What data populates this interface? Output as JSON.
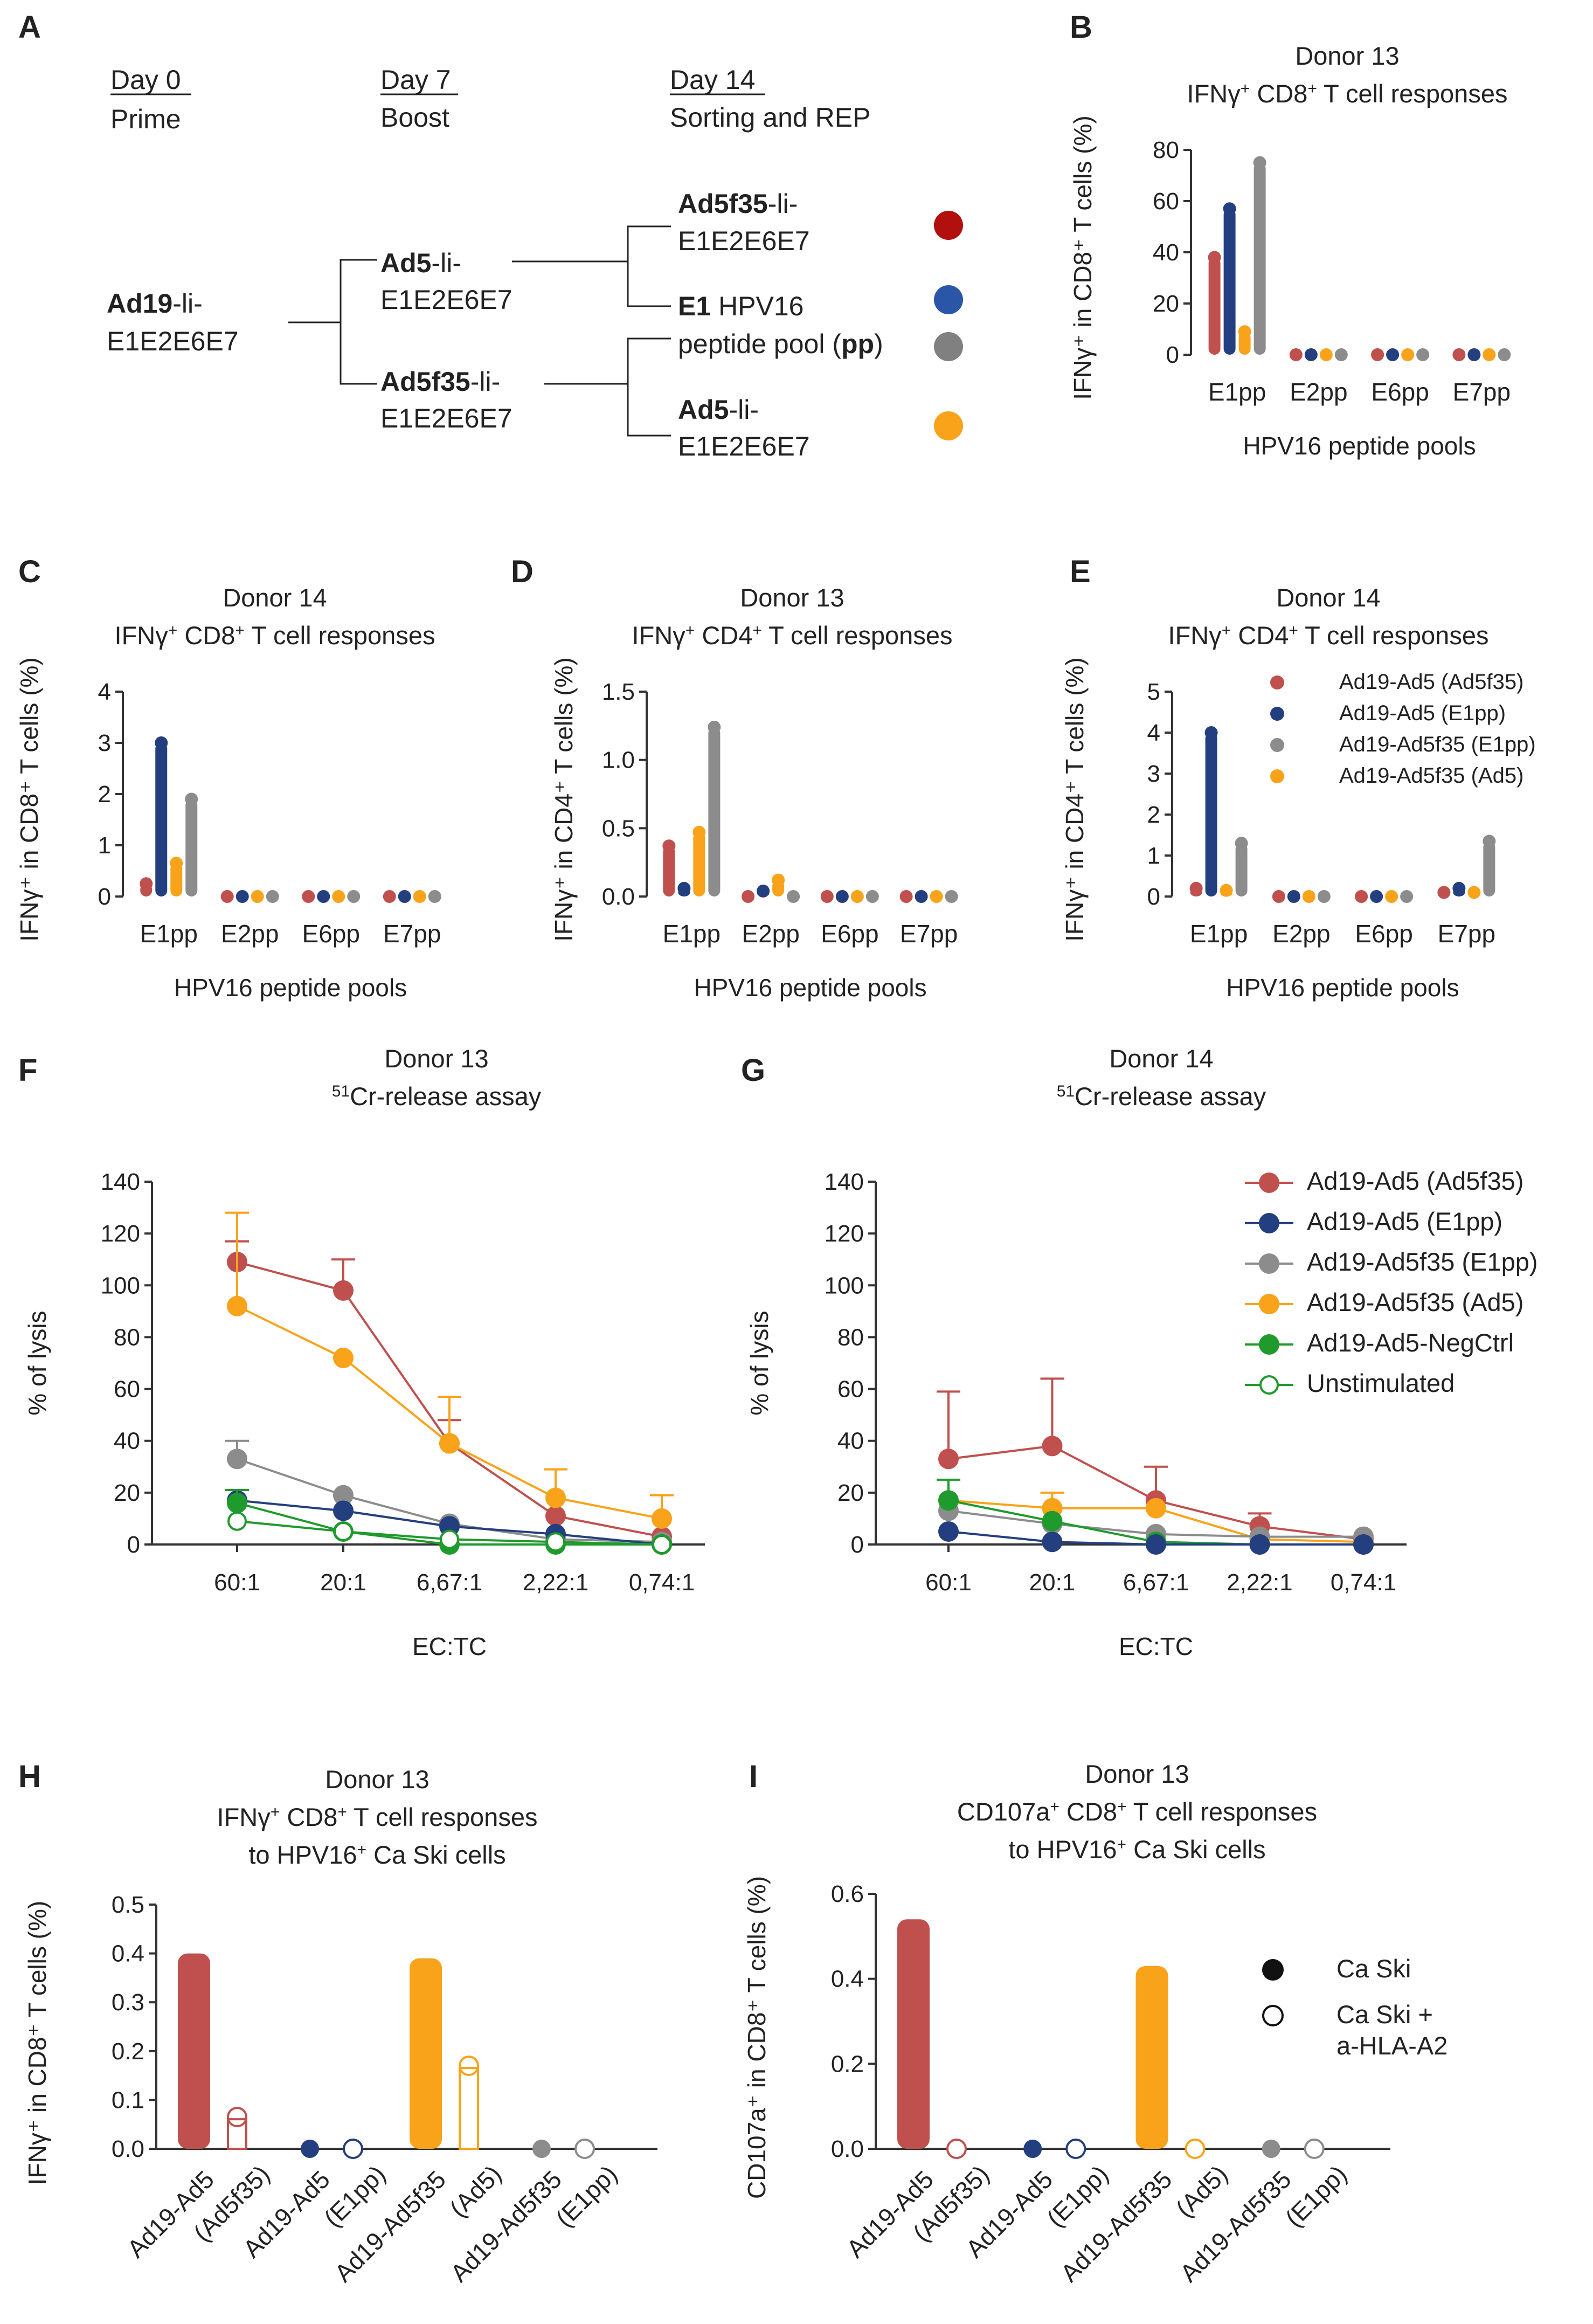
{
  "colors": {
    "red": "#c0504d",
    "navy": "#243f7f",
    "gray": "#8c8c8c",
    "orange": "#f9a31b",
    "green": "#1f9a2c",
    "axis": "#333333",
    "dot_red": "#b20f0f",
    "dot_blue": "#2b56a8",
    "dot_gray": "#808080",
    "dot_orange": "#f9a31b"
  },
  "panel_letters": {
    "a": "A",
    "b": "B",
    "c": "C",
    "d": "D",
    "e": "E",
    "f": "F",
    "g": "G",
    "h": "H",
    "i": "I"
  },
  "schematic": {
    "day0": "Day 0",
    "prime": "Prime",
    "day7": "Day 7",
    "boost": "Boost",
    "day14": "Day 14",
    "sorting": "Sorting and REP",
    "ad19_bold": "Ad19",
    "ad19_rest": "-li-",
    "ad19_line2": "E1E2E6E7",
    "ad5_bold": "Ad5",
    "ad5_rest": "-li-",
    "ad5_line2": "E1E2E6E7",
    "ad5f35_bold": "Ad5f35",
    "ad5f35_rest": "-li-",
    "ad5f35_line2": "E1E2E6E7",
    "out1_bold": "Ad5f35",
    "out1_rest": "-li-",
    "out1_line2": "E1E2E6E7",
    "out2_bold": "E1",
    "out2_rest": " HPV16",
    "out2_line2a": "peptide pool (",
    "out2_line2b": "pp",
    "out2_line2c": ")",
    "out3_bold": "Ad5",
    "out3_rest": "-li-",
    "out3_line2": "E1E2E6E7"
  },
  "legend_small": [
    {
      "label": "Ad19-Ad5 (Ad5f35)",
      "color": "red"
    },
    {
      "label": "Ad19-Ad5 (E1pp)",
      "color": "navy"
    },
    {
      "label": "Ad19-Ad5f35 (E1pp)",
      "color": "gray"
    },
    {
      "label": "Ad19-Ad5f35 (Ad5)",
      "color": "orange"
    }
  ],
  "legend_lysis": [
    {
      "label": "Ad19-Ad5 (Ad5f35)",
      "color": "red",
      "open": false
    },
    {
      "label": "Ad19-Ad5 (E1pp)",
      "color": "navy",
      "open": false
    },
    {
      "label": "Ad19-Ad5f35 (E1pp)",
      "color": "gray",
      "open": false
    },
    {
      "label": "Ad19-Ad5f35 (Ad5)",
      "color": "orange",
      "open": false
    },
    {
      "label": "Ad19-Ad5-NegCtrl",
      "color": "green",
      "open": false
    },
    {
      "label": "Unstimulated",
      "color": "green",
      "open": true
    }
  ],
  "legend_cas": [
    {
      "label": "Ca Ski",
      "open": false
    },
    {
      "label": "Ca Ski +",
      "label2": "a-HLA-A2",
      "open": true
    }
  ],
  "chart_data": [
    {
      "id": "B",
      "type": "bar",
      "title": "Donor 13",
      "subtitle_pre": "IFNγ",
      "subtitle_sup": "+",
      "subtitle_mid": " CD8",
      "subtitle_sup2": "+",
      "subtitle_post": " T cell responses",
      "ylabel": "IFNγ⁺ in CD8⁺ T cells (%)",
      "xlabel": "HPV16 peptide pools",
      "ylim": [
        0,
        80
      ],
      "yticks": [
        0,
        20,
        40,
        60,
        80
      ],
      "ytick_labels": [
        "0",
        "20",
        "40",
        "60",
        "80"
      ],
      "categories": [
        "E1pp",
        "E2pp",
        "E6pp",
        "E7pp"
      ],
      "series": [
        {
          "name": "Ad19-Ad5 (Ad5f35)",
          "color": "red",
          "values": [
            38,
            0,
            0,
            0
          ]
        },
        {
          "name": "Ad19-Ad5 (E1pp)",
          "color": "navy",
          "values": [
            57,
            0,
            0,
            0
          ]
        },
        {
          "name": "Ad19-Ad5f35 (Ad5)",
          "color": "orange",
          "values": [
            9,
            0,
            0,
            0
          ]
        },
        {
          "name": "Ad19-Ad5f35 (E1pp)",
          "color": "gray",
          "values": [
            75,
            0,
            0,
            0
          ]
        }
      ]
    },
    {
      "id": "C",
      "type": "bar",
      "title": "Donor 14",
      "subtitle_pre": "IFNγ",
      "subtitle_sup": "+",
      "subtitle_mid": " CD8",
      "subtitle_sup2": "+",
      "subtitle_post": " T cell responses",
      "ylabel": "IFNγ⁺ in CD8⁺ T cells (%)",
      "xlabel": "HPV16 peptide pools",
      "ylim": [
        0,
        4
      ],
      "yticks": [
        0,
        1,
        2,
        3,
        4
      ],
      "ytick_labels": [
        "0",
        "1",
        "2",
        "3",
        "4"
      ],
      "categories": [
        "E1pp",
        "E2pp",
        "E6pp",
        "E7pp"
      ],
      "series": [
        {
          "name": "Ad19-Ad5 (Ad5f35)",
          "color": "red",
          "values": [
            0.25,
            0,
            0,
            0
          ]
        },
        {
          "name": "Ad19-Ad5 (E1pp)",
          "color": "navy",
          "values": [
            3.0,
            0,
            0,
            0
          ]
        },
        {
          "name": "Ad19-Ad5f35 (Ad5)",
          "color": "orange",
          "values": [
            0.65,
            0,
            0,
            0
          ]
        },
        {
          "name": "Ad19-Ad5f35 (E1pp)",
          "color": "gray",
          "values": [
            1.9,
            0,
            0,
            0
          ]
        }
      ]
    },
    {
      "id": "D",
      "type": "bar",
      "title": "Donor 13",
      "subtitle_pre": "IFNγ",
      "subtitle_sup": "+",
      "subtitle_mid": " CD4",
      "subtitle_sup2": "+",
      "subtitle_post": " T cell responses",
      "ylabel": "IFNγ⁺ in CD4⁺ T cells (%)",
      "xlabel": "HPV16 peptide pools",
      "ylim": [
        0,
        1.5
      ],
      "yticks": [
        0,
        0.5,
        1.0,
        1.5
      ],
      "ytick_labels": [
        "0.0",
        "0.5",
        "1.0",
        "1.5"
      ],
      "categories": [
        "E1pp",
        "E2pp",
        "E6pp",
        "E7pp"
      ],
      "series": [
        {
          "name": "Ad19-Ad5 (Ad5f35)",
          "color": "red",
          "values": [
            0.37,
            0,
            0,
            0
          ]
        },
        {
          "name": "Ad19-Ad5 (E1pp)",
          "color": "navy",
          "values": [
            0.06,
            0.04,
            0,
            0
          ]
        },
        {
          "name": "Ad19-Ad5f35 (Ad5)",
          "color": "orange",
          "values": [
            0.47,
            0.12,
            0,
            0
          ]
        },
        {
          "name": "Ad19-Ad5f35 (E1pp)",
          "color": "gray",
          "values": [
            1.24,
            0,
            0,
            0
          ]
        }
      ]
    },
    {
      "id": "E",
      "type": "bar",
      "title": "Donor 14",
      "subtitle_pre": "IFNγ",
      "subtitle_sup": "+",
      "subtitle_mid": " CD4",
      "subtitle_sup2": "+",
      "subtitle_post": " T cell responses",
      "ylabel": "IFNγ⁺ in CD4⁺ T cells (%)",
      "xlabel": "HPV16 peptide pools",
      "ylim": [
        0,
        5
      ],
      "yticks": [
        0,
        1,
        2,
        3,
        4,
        5
      ],
      "ytick_labels": [
        "0",
        "1",
        "2",
        "3",
        "4",
        "5"
      ],
      "categories": [
        "E1pp",
        "E2pp",
        "E6pp",
        "E7pp"
      ],
      "series": [
        {
          "name": "Ad19-Ad5 (Ad5f35)",
          "color": "red",
          "values": [
            0.2,
            0,
            0,
            0.1
          ]
        },
        {
          "name": "Ad19-Ad5 (E1pp)",
          "color": "navy",
          "values": [
            4.0,
            0,
            0,
            0.2
          ]
        },
        {
          "name": "Ad19-Ad5f35 (Ad5)",
          "color": "orange",
          "values": [
            0.15,
            0,
            0,
            0.1
          ]
        },
        {
          "name": "Ad19-Ad5f35 (E1pp)",
          "color": "gray",
          "values": [
            1.3,
            0,
            0,
            1.35
          ]
        }
      ]
    },
    {
      "id": "F",
      "type": "line",
      "title": "Donor 13",
      "subtitle_sup": "51",
      "subtitle_post": "Cr-release assay",
      "ylabel": "% of lysis",
      "xlabel": "EC:TC",
      "ylim": [
        0,
        140
      ],
      "yticks": [
        0,
        20,
        40,
        60,
        80,
        100,
        120,
        140
      ],
      "ytick_labels": [
        "0",
        "20",
        "40",
        "60",
        "80",
        "100",
        "120",
        "140"
      ],
      "categories": [
        "60:1",
        "20:1",
        "6,67:1",
        "2,22:1",
        "0,74:1"
      ],
      "series": [
        {
          "name": "Ad19-Ad5 (Ad5f35)",
          "color": "red",
          "values": [
            109,
            98,
            39,
            11,
            3
          ],
          "err": [
            8,
            12,
            9,
            0,
            0
          ]
        },
        {
          "name": "Ad19-Ad5f35 (Ad5)",
          "color": "orange",
          "values": [
            92,
            72,
            39,
            18,
            10
          ],
          "err": [
            36,
            0,
            18,
            11,
            9
          ]
        },
        {
          "name": "Ad19-Ad5f35 (E1pp)",
          "color": "gray",
          "values": [
            33,
            19,
            8,
            2,
            1
          ],
          "err": [
            7,
            0,
            0,
            0,
            0
          ]
        },
        {
          "name": "Ad19-Ad5 (E1pp)",
          "color": "navy",
          "values": [
            17,
            13,
            7,
            4,
            0
          ],
          "err": [
            4,
            0,
            0,
            0,
            0
          ]
        },
        {
          "name": "Ad19-Ad5-NegCtrl",
          "color": "green",
          "values": [
            16,
            5,
            0,
            0,
            0
          ],
          "err": [
            5,
            0,
            0,
            0,
            0
          ]
        },
        {
          "name": "Unstimulated",
          "color": "green",
          "open": true,
          "values": [
            9,
            5,
            2,
            1,
            0
          ],
          "err": [
            0,
            0,
            0,
            0,
            0
          ]
        }
      ]
    },
    {
      "id": "G",
      "type": "line",
      "title": "Donor 14",
      "subtitle_sup": "51",
      "subtitle_post": "Cr-release assay",
      "ylabel": "% of lysis",
      "xlabel": "EC:TC",
      "ylim": [
        0,
        140
      ],
      "yticks": [
        0,
        20,
        40,
        60,
        80,
        100,
        120,
        140
      ],
      "ytick_labels": [
        "0",
        "20",
        "40",
        "60",
        "80",
        "100",
        "120",
        "140"
      ],
      "categories": [
        "60:1",
        "20:1",
        "6,67:1",
        "2,22:1",
        "0,74:1"
      ],
      "series": [
        {
          "name": "Ad19-Ad5 (Ad5f35)",
          "color": "red",
          "values": [
            33,
            38,
            17,
            7,
            2
          ],
          "err": [
            26,
            26,
            13,
            5,
            0
          ]
        },
        {
          "name": "Ad19-Ad5f35 (Ad5)",
          "color": "orange",
          "values": [
            17,
            14,
            14,
            2,
            1
          ],
          "err": [
            0,
            6,
            0,
            0,
            0
          ]
        },
        {
          "name": "Ad19-Ad5f35 (E1pp)",
          "color": "gray",
          "values": [
            13,
            8,
            4,
            3,
            3
          ],
          "err": [
            0,
            0,
            0,
            0,
            0
          ]
        },
        {
          "name": "Ad19-Ad5-NegCtrl",
          "color": "green",
          "values": [
            17,
            9,
            1,
            0,
            0
          ],
          "err": [
            8,
            0,
            0,
            0,
            0
          ]
        },
        {
          "name": "Ad19-Ad5 (E1pp)",
          "color": "navy",
          "values": [
            5,
            1,
            0,
            0,
            0
          ],
          "err": [
            0,
            0,
            0,
            0,
            0
          ]
        }
      ]
    },
    {
      "id": "H",
      "type": "bar",
      "title": "Donor 13",
      "subtitle_pre": "IFNγ",
      "subtitle_sup": "+",
      "subtitle_mid": " CD8",
      "subtitle_sup2": "+",
      "subtitle_post": " T cell responses",
      "subtitle2_pre": "to HPV16",
      "subtitle2_sup": "+",
      "subtitle2_post": "  Ca Ski cells",
      "ylabel": "IFNγ⁺ in CD8⁺ T cells (%)",
      "xlabel": "",
      "ylim": [
        0,
        0.5
      ],
      "yticks": [
        0,
        0.1,
        0.2,
        0.3,
        0.4,
        0.5
      ],
      "ytick_labels": [
        "0.0",
        "0.1",
        "0.2",
        "0.3",
        "0.4",
        "0.5"
      ],
      "categories": [
        [
          "Ad19-Ad5",
          "(Ad5f35)"
        ],
        [
          "Ad19-Ad5",
          "(E1pp)"
        ],
        [
          "Ad19-Ad5f35",
          "(Ad5)"
        ],
        [
          "Ad19-Ad5f35",
          "(E1pp)"
        ]
      ],
      "groups": [
        {
          "color": "red",
          "caski": 0.4,
          "blocked": 0.065
        },
        {
          "color": "navy",
          "caski": 0.0,
          "blocked": 0.0
        },
        {
          "color": "orange",
          "caski": 0.39,
          "blocked": 0.17
        },
        {
          "color": "gray",
          "caski": 0.0,
          "blocked": 0.0
        }
      ]
    },
    {
      "id": "I",
      "type": "bar",
      "title": "Donor 13",
      "subtitle_pre": "CD107a",
      "subtitle_sup": "+",
      "subtitle_mid": " CD8",
      "subtitle_sup2": "+",
      "subtitle_post": " T cell responses",
      "subtitle2_pre": "to HPV16",
      "subtitle2_sup": "+",
      "subtitle2_post": " Ca Ski cells",
      "ylabel": "CD107a⁺ in CD8⁺ T cells (%)",
      "xlabel": "",
      "ylim": [
        0,
        0.6
      ],
      "yticks": [
        0,
        0.2,
        0.4,
        0.6
      ],
      "ytick_labels": [
        "0.0",
        "0.2",
        "0.4",
        "0.6"
      ],
      "categories": [
        [
          "Ad19-Ad5",
          "(Ad5f35)"
        ],
        [
          "Ad19-Ad5",
          "(E1pp)"
        ],
        [
          "Ad19-Ad5f35",
          "(Ad5)"
        ],
        [
          "Ad19-Ad5f35",
          "(E1pp)"
        ]
      ],
      "groups": [
        {
          "color": "red",
          "caski": 0.54,
          "blocked": 0.0
        },
        {
          "color": "navy",
          "caski": 0.0,
          "blocked": 0.0
        },
        {
          "color": "orange",
          "caski": 0.43,
          "blocked": 0.0
        },
        {
          "color": "gray",
          "caski": 0.0,
          "blocked": 0.0
        }
      ]
    }
  ]
}
